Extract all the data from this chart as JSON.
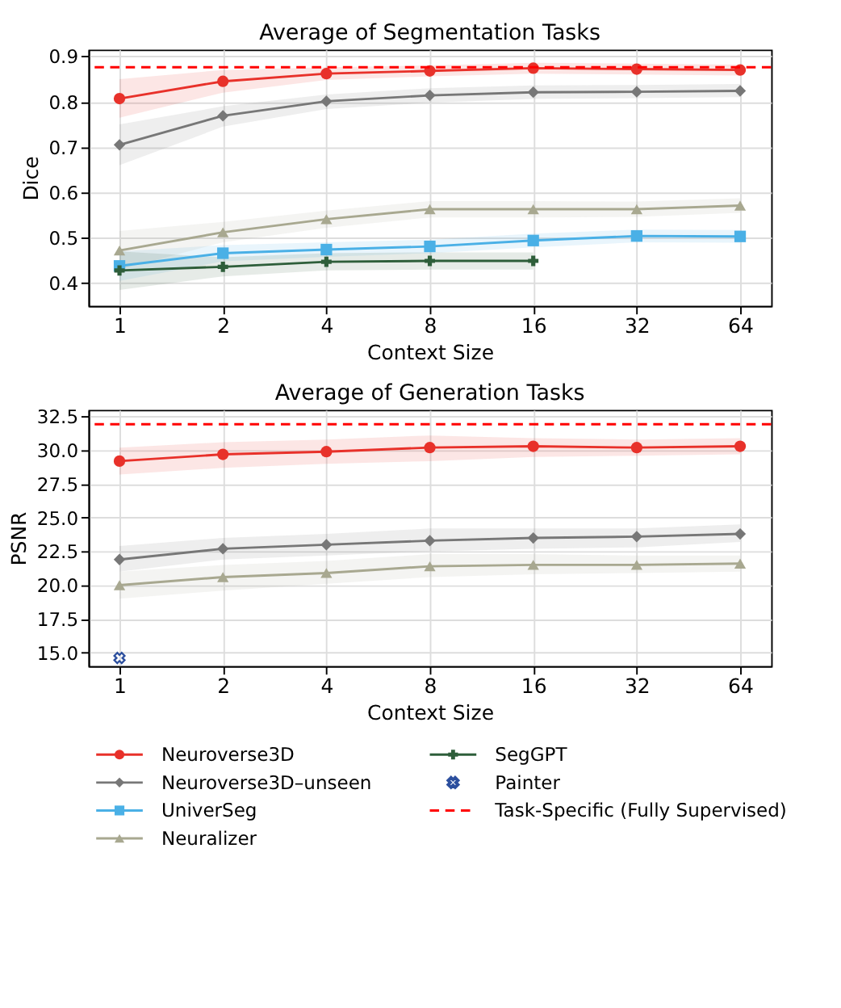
{
  "chart_data": [
    {
      "type": "line",
      "title": "Average of Segmentation Tasks",
      "xlabel": "Context Size",
      "ylabel": "Dice",
      "categories": [
        "1",
        "2",
        "4",
        "8",
        "16",
        "32",
        "64"
      ],
      "ylim": [
        0.35,
        0.915
      ],
      "yticks": [
        0.4,
        0.5,
        0.6,
        0.7,
        0.8,
        0.9
      ],
      "grid": true,
      "legend": "bottom",
      "line_style": "solid",
      "series": [
        {
          "name": "Neuroverse3D",
          "color": "#e8312a",
          "marker": "circle",
          "values": [
            0.807,
            0.845,
            0.862,
            0.868,
            0.874,
            0.872,
            0.87
          ],
          "lower": [
            0.765,
            0.82,
            0.848,
            0.856,
            0.862,
            0.86,
            0.858
          ],
          "upper": [
            0.85,
            0.87,
            0.876,
            0.88,
            0.886,
            0.884,
            0.882
          ]
        },
        {
          "name": "Neuroverse3D–unseen",
          "color": "#777777",
          "marker": "diamond",
          "values": [
            0.705,
            0.769,
            0.801,
            0.814,
            0.821,
            0.822,
            0.824
          ],
          "lower": [
            0.66,
            0.745,
            0.784,
            0.798,
            0.806,
            0.808,
            0.81
          ],
          "upper": [
            0.75,
            0.79,
            0.816,
            0.83,
            0.836,
            0.837,
            0.839
          ]
        },
        {
          "name": "UniverSeg",
          "color": "#4ab0e6",
          "marker": "square",
          "values": [
            0.438,
            0.466,
            0.474,
            0.481,
            0.494,
            0.504,
            0.503
          ],
          "lower": [
            0.405,
            0.448,
            0.458,
            0.466,
            0.479,
            0.49,
            0.489
          ],
          "upper": [
            0.47,
            0.484,
            0.49,
            0.496,
            0.509,
            0.518,
            0.517
          ]
        },
        {
          "name": "Neuralizer",
          "color": "#a8a890",
          "marker": "triangle",
          "values": [
            0.472,
            0.512,
            0.541,
            0.563,
            0.563,
            0.563,
            0.571
          ],
          "lower": [
            0.43,
            0.49,
            0.522,
            0.545,
            0.545,
            0.546,
            0.555
          ],
          "upper": [
            0.515,
            0.535,
            0.56,
            0.581,
            0.581,
            0.58,
            0.587
          ]
        },
        {
          "name": "SegGPT",
          "color": "#2e5e3a",
          "marker": "cross",
          "values": [
            0.428,
            0.436,
            0.447,
            0.449,
            0.449,
            null,
            null
          ],
          "lower": [
            0.385,
            0.415,
            0.428,
            0.43,
            0.43,
            null,
            null
          ],
          "upper": [
            0.47,
            0.457,
            0.466,
            0.468,
            0.468,
            null,
            null
          ]
        }
      ],
      "ref_lines": [
        {
          "axis": "y",
          "value": 0.876,
          "color": "#ff0000",
          "line_style": "dashed"
        }
      ]
    },
    {
      "type": "line",
      "title": "Average of Generation Tasks",
      "xlabel": "Context Size",
      "ylabel": "PSNR",
      "categories": [
        "1",
        "2",
        "4",
        "8",
        "16",
        "32",
        "64"
      ],
      "ylim": [
        14.0,
        33.0
      ],
      "yticks": [
        {
          "value": 15,
          "label": "15.0"
        },
        17.5,
        {
          "value": 20,
          "label": "20.0"
        },
        22.5,
        {
          "value": 25,
          "label": "25.0"
        },
        27.5,
        {
          "value": 30,
          "label": "30.0"
        },
        32.5
      ],
      "grid": true,
      "legend": "bottom",
      "line_style": "solid",
      "series": [
        {
          "name": "Neuroverse3D",
          "color": "#e8312a",
          "marker": "circle",
          "values": [
            29.2,
            29.7,
            29.9,
            30.2,
            30.3,
            30.2,
            30.3
          ],
          "lower": [
            28.2,
            28.7,
            29.0,
            29.2,
            29.5,
            29.6,
            29.7
          ],
          "upper": [
            30.2,
            30.6,
            30.8,
            31.1,
            30.9,
            30.8,
            30.9
          ]
        },
        {
          "name": "Neuroverse3D–unseen",
          "color": "#777777",
          "marker": "diamond",
          "values": [
            21.9,
            22.7,
            23.0,
            23.3,
            23.5,
            23.6,
            23.8
          ],
          "lower": [
            21.0,
            21.9,
            22.2,
            22.5,
            22.7,
            22.8,
            23.2
          ],
          "upper": [
            22.9,
            23.5,
            23.8,
            24.2,
            24.2,
            24.2,
            24.5
          ]
        },
        {
          "name": "Painter",
          "type": "scatter",
          "color": "#2c4f9e",
          "marker": "cross",
          "values": [
            14.6,
            null,
            null,
            null,
            null,
            null,
            null
          ]
        },
        {
          "name": "Neuralizer",
          "color": "#a8a890",
          "marker": "triangle",
          "values": [
            20.0,
            20.6,
            20.9,
            21.4,
            21.5,
            21.5,
            21.6
          ],
          "lower": [
            19.0,
            19.6,
            20.1,
            20.6,
            20.8,
            20.9,
            21.0
          ],
          "upper": [
            21.0,
            21.5,
            21.8,
            22.3,
            22.3,
            22.2,
            22.2
          ]
        }
      ],
      "ref_lines": [
        {
          "axis": "y",
          "value": 31.93,
          "label": "Task-Specific (Fully Supervised)",
          "color": "#ff0000",
          "line_style": "dashed"
        }
      ]
    }
  ]
}
